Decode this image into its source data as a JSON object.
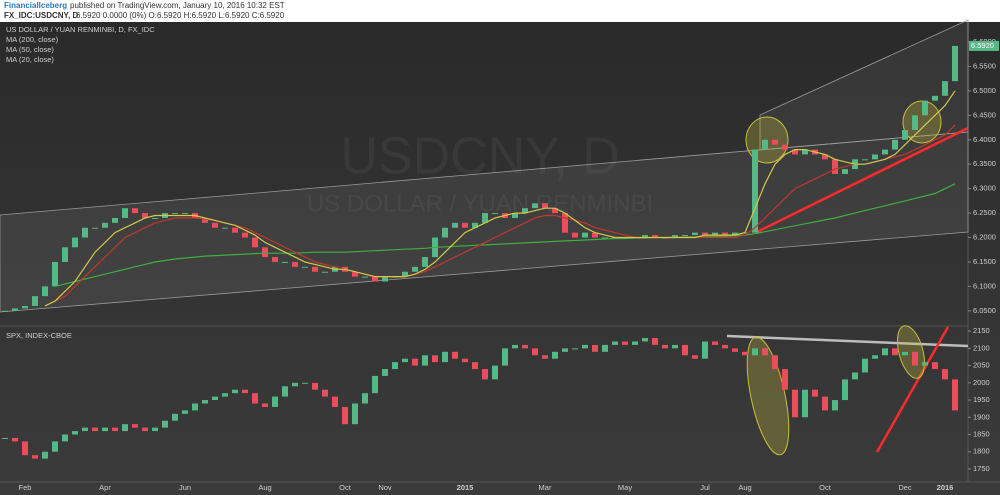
{
  "header": {
    "author": "FinancialIceberg",
    "published": "published on TradingView.com, January 10, 2016 10:32 EST",
    "symbol": "FX_IDC:USDCNY, D",
    "quote": "6.5920 0.0000 (0%) O:6.5920 H:6.5920 L:6.5920 C:6.5920"
  },
  "chart_data": [
    {
      "type": "candlestick",
      "title": "US DOLLAR / YUAN RENMINBI, D, FX_IDC",
      "watermark": [
        "USDCNY, D",
        "US DOLLAR / YUAN RENMINBI"
      ],
      "up_color": "#53b987",
      "down_color": "#eb4d5c",
      "grid": false,
      "last_value_label": "6.5920",
      "values": [
        6.05,
        6.055,
        6.06,
        6.08,
        6.1,
        6.15,
        6.18,
        6.2,
        6.22,
        6.22,
        6.23,
        6.24,
        6.26,
        6.25,
        6.24,
        6.24,
        6.25,
        6.25,
        6.25,
        6.24,
        6.23,
        6.22,
        6.22,
        6.21,
        6.2,
        6.18,
        6.16,
        6.15,
        6.15,
        6.14,
        6.14,
        6.13,
        6.13,
        6.14,
        6.13,
        6.12,
        6.12,
        6.11,
        6.12,
        6.12,
        6.13,
        6.14,
        6.16,
        6.2,
        6.22,
        6.23,
        6.22,
        6.23,
        6.25,
        6.25,
        6.24,
        6.25,
        6.26,
        6.27,
        6.26,
        6.25,
        6.21,
        6.2,
        6.21,
        6.2,
        6.2,
        6.2,
        6.2,
        6.2,
        6.205,
        6.2,
        6.2,
        6.205,
        6.205,
        6.21,
        6.205,
        6.21,
        6.205,
        6.21,
        6.21,
        6.38,
        6.4,
        6.39,
        6.38,
        6.37,
        6.38,
        6.37,
        6.36,
        6.33,
        6.34,
        6.36,
        6.36,
        6.37,
        6.38,
        6.4,
        6.42,
        6.45,
        6.48,
        6.49,
        6.52,
        6.592
      ],
      "overlays": [
        {
          "name": "MA (200, close)",
          "color": "#3fae3f",
          "values": [
            null,
            null,
            null,
            null,
            null,
            6.1,
            6.105,
            6.11,
            6.115,
            6.12,
            6.125,
            6.13,
            6.135,
            6.14,
            6.145,
            6.15,
            6.153,
            6.156,
            6.158,
            6.16,
            6.162,
            6.163,
            6.164,
            6.165,
            6.166,
            6.167,
            6.168,
            6.168,
            6.168,
            6.168,
            6.169,
            6.17,
            6.17,
            6.17,
            6.17,
            6.171,
            6.172,
            6.173,
            6.174,
            6.175,
            6.176,
            6.177,
            6.178,
            6.18,
            6.181,
            6.182,
            6.183,
            6.184,
            6.185,
            6.186,
            6.187,
            6.188,
            6.189,
            6.19,
            6.191,
            6.192,
            6.193,
            6.194,
            6.195,
            6.196,
            6.197,
            6.198,
            6.198,
            6.199,
            6.199,
            6.2,
            6.2,
            6.2,
            6.201,
            6.201,
            6.202,
            6.202,
            6.203,
            6.204,
            6.205,
            6.208,
            6.212,
            6.216,
            6.22,
            6.224,
            6.228,
            6.232,
            6.236,
            6.24,
            6.245,
            6.25,
            6.255,
            6.26,
            6.265,
            6.27,
            6.275,
            6.28,
            6.285,
            6.29,
            6.3,
            6.31
          ]
        },
        {
          "name": "MA (50, close)",
          "color": "#c0392b",
          "values": [
            null,
            null,
            null,
            null,
            null,
            6.07,
            6.08,
            6.1,
            6.12,
            6.14,
            6.16,
            6.18,
            6.2,
            6.21,
            6.22,
            6.23,
            6.235,
            6.24,
            6.24,
            6.24,
            6.238,
            6.235,
            6.23,
            6.225,
            6.22,
            6.21,
            6.2,
            6.19,
            6.18,
            6.17,
            6.16,
            6.15,
            6.145,
            6.14,
            6.135,
            6.13,
            6.125,
            6.12,
            6.12,
            6.12,
            6.12,
            6.125,
            6.13,
            6.14,
            6.15,
            6.16,
            6.17,
            6.18,
            6.19,
            6.2,
            6.21,
            6.22,
            6.23,
            6.24,
            6.245,
            6.245,
            6.24,
            6.235,
            6.23,
            6.22,
            6.215,
            6.21,
            6.205,
            6.2,
            6.2,
            6.2,
            6.2,
            6.2,
            6.2,
            6.2,
            6.2,
            6.2,
            6.2,
            6.2,
            6.205,
            6.22,
            6.24,
            6.26,
            6.28,
            6.3,
            6.31,
            6.32,
            6.33,
            6.34,
            6.345,
            6.35,
            6.35,
            6.355,
            6.36,
            6.365,
            6.37,
            6.38,
            6.39,
            6.4,
            6.41,
            6.43
          ]
        },
        {
          "name": "MA (20, close)",
          "color": "#d4c84a",
          "values": [
            null,
            null,
            null,
            null,
            6.06,
            6.07,
            6.09,
            6.11,
            6.14,
            6.17,
            6.19,
            6.21,
            6.22,
            6.23,
            6.24,
            6.245,
            6.245,
            6.245,
            6.245,
            6.245,
            6.24,
            6.235,
            6.23,
            6.225,
            6.215,
            6.205,
            6.19,
            6.18,
            6.17,
            6.16,
            6.15,
            6.145,
            6.14,
            6.135,
            6.135,
            6.13,
            6.125,
            6.12,
            6.12,
            6.12,
            6.12,
            6.125,
            6.135,
            6.15,
            6.17,
            6.19,
            6.21,
            6.22,
            6.23,
            6.24,
            6.245,
            6.25,
            6.25,
            6.255,
            6.26,
            6.26,
            6.25,
            6.235,
            6.22,
            6.21,
            6.205,
            6.2,
            6.2,
            6.2,
            6.2,
            6.2,
            6.2,
            6.2,
            6.2,
            6.2,
            6.205,
            6.205,
            6.205,
            6.205,
            6.21,
            6.26,
            6.31,
            6.35,
            6.37,
            6.38,
            6.38,
            6.375,
            6.37,
            6.36,
            6.355,
            6.35,
            6.35,
            6.355,
            6.36,
            6.37,
            6.39,
            6.41,
            6.43,
            6.45,
            6.47,
            6.5
          ]
        }
      ],
      "ylim": [
        6.021,
        6.641
      ],
      "yticks": [
        {
          "value": 6.05,
          "label": "6.0500"
        },
        {
          "value": 6.1,
          "label": "6.1000"
        },
        {
          "value": 6.15,
          "label": "6.1500"
        },
        {
          "value": 6.2,
          "label": "6.2000"
        },
        {
          "value": 6.25,
          "label": "6.2500"
        },
        {
          "value": 6.3,
          "label": "6.3000"
        },
        {
          "value": 6.35,
          "label": "6.3500"
        },
        {
          "value": 6.4,
          "label": "6.4000"
        },
        {
          "value": 6.45,
          "label": "6.4500"
        },
        {
          "value": 6.5,
          "label": "6.5000"
        },
        {
          "value": 6.55,
          "label": "6.5500"
        },
        {
          "value": 6.6,
          "label": "6.6000"
        }
      ]
    },
    {
      "type": "candlestick",
      "title": "SPX, INDEX-CBOE",
      "up_color": "#53b987",
      "down_color": "#eb4d5c",
      "grid": false,
      "categories": [
        null,
        null,
        "Feb",
        null,
        null,
        null,
        null,
        null,
        null,
        null,
        "Apr",
        null,
        null,
        null,
        null,
        null,
        null,
        null,
        "Jun",
        null,
        null,
        null,
        null,
        null,
        null,
        null,
        "Aug",
        null,
        null,
        null,
        null,
        null,
        null,
        null,
        "Oct",
        null,
        null,
        null,
        "Nov",
        null,
        null,
        null,
        null,
        null,
        null,
        null,
        "2015",
        null,
        null,
        null,
        null,
        null,
        null,
        null,
        "Mar",
        null,
        null,
        null,
        null,
        null,
        null,
        null,
        "May",
        null,
        null,
        null,
        null,
        null,
        null,
        null,
        "Jul",
        null,
        null,
        null,
        "Aug",
        null,
        null,
        null,
        null,
        null,
        null,
        null,
        "Oct",
        null,
        null,
        null,
        null,
        null,
        null,
        null,
        "Dec",
        null,
        null,
        null,
        "2016",
        null
      ],
      "values": [
        1840,
        1830,
        1790,
        1780,
        1800,
        1830,
        1850,
        1860,
        1870,
        1860,
        1870,
        1860,
        1880,
        1870,
        1860,
        1870,
        1890,
        1910,
        1920,
        1940,
        1950,
        1960,
        1970,
        1980,
        1970,
        1940,
        1930,
        1960,
        1990,
        2000,
        2000,
        1980,
        1960,
        1930,
        1880,
        1940,
        1970,
        2020,
        2040,
        2060,
        2070,
        2050,
        2080,
        2060,
        2090,
        2070,
        2060,
        2040,
        2010,
        2050,
        2100,
        2110,
        2100,
        2080,
        2070,
        2090,
        2100,
        2100,
        2110,
        2090,
        2110,
        2120,
        2110,
        2120,
        2130,
        2110,
        2100,
        2110,
        2080,
        2070,
        2120,
        2110,
        2100,
        2090,
        2080,
        2100,
        2080,
        2040,
        1980,
        1900,
        1980,
        1960,
        1920,
        1950,
        2010,
        2030,
        2070,
        2080,
        2100,
        2080,
        2090,
        2050,
        2060,
        2040,
        2010,
        1920
      ],
      "ylim": [
        1718,
        2162
      ],
      "yticks": [
        1750,
        1800,
        1850,
        1900,
        1950,
        2000,
        2050,
        2100,
        2150
      ]
    }
  ]
}
